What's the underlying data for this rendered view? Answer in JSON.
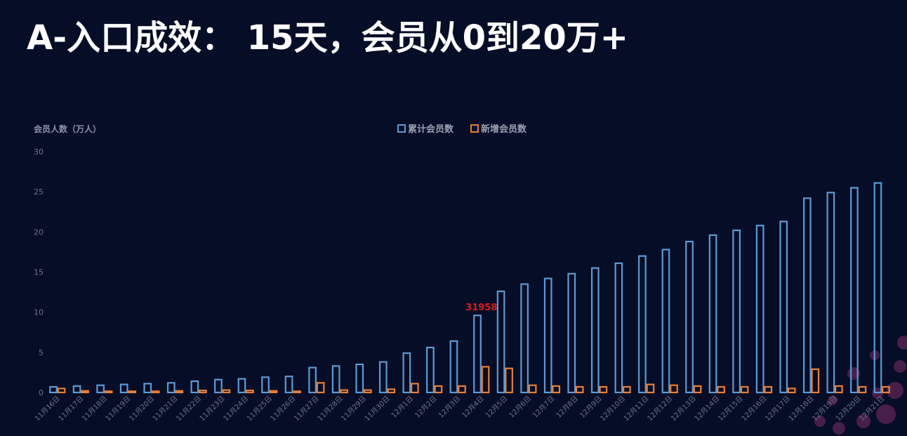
{
  "title": "A-入口成效： 15天，会员从0到20万+",
  "chart_data": {
    "type": "bar",
    "ylabel": "会员人数（万人）",
    "ylim": [
      0,
      30
    ],
    "yticks": [
      0,
      5,
      10,
      15,
      20,
      25,
      30
    ],
    "legend_position": "top-center",
    "categories": [
      "11月16日",
      "11月17日",
      "11月18日",
      "11月19日",
      "11月20日",
      "11月21日",
      "11月22日",
      "11月23日",
      "11月24日",
      "11月25日",
      "11月26日",
      "11月27日",
      "11月28日",
      "11月29日",
      "11月30日",
      "12月1日",
      "12月2日",
      "12月3日",
      "12月4日",
      "12月5日",
      "12月6日",
      "12月7日",
      "12月8日",
      "12月9日",
      "12月10日",
      "12月11日",
      "12月12日",
      "12月13日",
      "12月14日",
      "12月15日",
      "12月16日",
      "12月17日",
      "12月18日",
      "12月19日",
      "12月20日",
      "12月21日"
    ],
    "series": [
      {
        "name": "累计会员数",
        "color": "#5b9bd5",
        "values": [
          0.7,
          0.8,
          0.9,
          1.0,
          1.1,
          1.2,
          1.4,
          1.6,
          1.7,
          1.9,
          2.0,
          3.1,
          3.3,
          3.5,
          3.8,
          4.9,
          5.6,
          6.4,
          9.6,
          12.6,
          13.5,
          14.2,
          14.8,
          15.5,
          16.1,
          17.0,
          17.8,
          18.8,
          19.6,
          20.2,
          20.8,
          21.3,
          24.2,
          24.9,
          25.5,
          26.1
        ]
      },
      {
        "name": "新增会员数",
        "color": "#ed7d31",
        "values": [
          0.5,
          0.2,
          0.15,
          0.15,
          0.15,
          0.2,
          0.25,
          0.3,
          0.25,
          0.2,
          0.15,
          1.2,
          0.3,
          0.3,
          0.4,
          1.1,
          0.8,
          0.8,
          3.2,
          3.0,
          0.9,
          0.8,
          0.7,
          0.7,
          0.7,
          1.0,
          0.9,
          0.8,
          0.7,
          0.7,
          0.7,
          0.5,
          2.9,
          0.8,
          0.7,
          0.7
        ]
      }
    ],
    "annotations": [
      {
        "category": "12月4日",
        "text": "31958",
        "color": "#e01b1b"
      }
    ]
  }
}
